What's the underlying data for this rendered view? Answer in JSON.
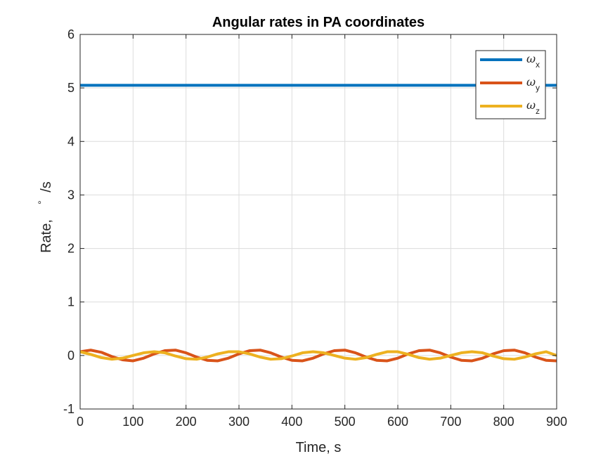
{
  "chart_data": {
    "type": "line",
    "title": "Angular rates in PA coordinates",
    "xlabel": "Time, s",
    "ylabel": "Rate, °/s",
    "ylabel_prefix": "Rate,",
    "ylabel_degree": "°",
    "ylabel_unit": "/s",
    "xlim": [
      0,
      900
    ],
    "ylim": [
      -1,
      6
    ],
    "xticks": [
      0,
      100,
      200,
      300,
      400,
      500,
      600,
      700,
      800,
      900
    ],
    "yticks": [
      -1,
      0,
      1,
      2,
      3,
      4,
      5,
      6
    ],
    "grid": true,
    "legend_position": "top-right",
    "series": [
      {
        "name_symbol": "ω",
        "name_subscript": "x",
        "color": "#0072BD",
        "x": [
          0,
          900
        ],
        "y": [
          5.05,
          5.05
        ]
      },
      {
        "name_symbol": "ω",
        "name_subscript": "y",
        "color": "#D95319",
        "x": [
          0,
          20,
          40,
          60,
          80,
          100,
          120,
          140,
          160,
          180,
          200,
          220,
          240,
          260,
          280,
          300,
          320,
          340,
          360,
          380,
          400,
          420,
          440,
          460,
          480,
          500,
          520,
          540,
          560,
          580,
          600,
          620,
          640,
          660,
          680,
          700,
          720,
          740,
          760,
          780,
          800,
          820,
          840,
          860,
          880,
          900
        ],
        "y": [
          0.07,
          0.1,
          0.06,
          -0.02,
          -0.08,
          -0.1,
          -0.05,
          0.03,
          0.09,
          0.1,
          0.05,
          -0.03,
          -0.09,
          -0.1,
          -0.05,
          0.03,
          0.09,
          0.1,
          0.05,
          -0.03,
          -0.09,
          -0.1,
          -0.05,
          0.03,
          0.09,
          0.1,
          0.05,
          -0.03,
          -0.09,
          -0.1,
          -0.05,
          0.03,
          0.09,
          0.1,
          0.05,
          -0.03,
          -0.09,
          -0.1,
          -0.05,
          0.03,
          0.09,
          0.1,
          0.05,
          -0.03,
          -0.09,
          -0.1
        ]
      },
      {
        "name_symbol": "ω",
        "name_subscript": "z",
        "color": "#EDB120",
        "x": [
          0,
          20,
          40,
          60,
          80,
          100,
          120,
          140,
          160,
          180,
          200,
          220,
          240,
          260,
          280,
          300,
          320,
          340,
          360,
          380,
          400,
          420,
          440,
          460,
          480,
          500,
          520,
          540,
          560,
          580,
          600,
          620,
          640,
          660,
          680,
          700,
          720,
          740,
          760,
          780,
          800,
          820,
          840,
          860,
          880,
          900
        ],
        "y": [
          0.07,
          0.02,
          -0.04,
          -0.07,
          -0.05,
          0.0,
          0.05,
          0.07,
          0.05,
          -0.01,
          -0.06,
          -0.07,
          -0.03,
          0.03,
          0.07,
          0.07,
          0.03,
          -0.03,
          -0.07,
          -0.06,
          -0.01,
          0.05,
          0.07,
          0.05,
          0.0,
          -0.05,
          -0.07,
          -0.04,
          0.02,
          0.07,
          0.07,
          0.02,
          -0.04,
          -0.07,
          -0.05,
          0.0,
          0.05,
          0.07,
          0.05,
          -0.01,
          -0.06,
          -0.07,
          -0.03,
          0.03,
          0.07,
          0.0
        ]
      }
    ]
  }
}
